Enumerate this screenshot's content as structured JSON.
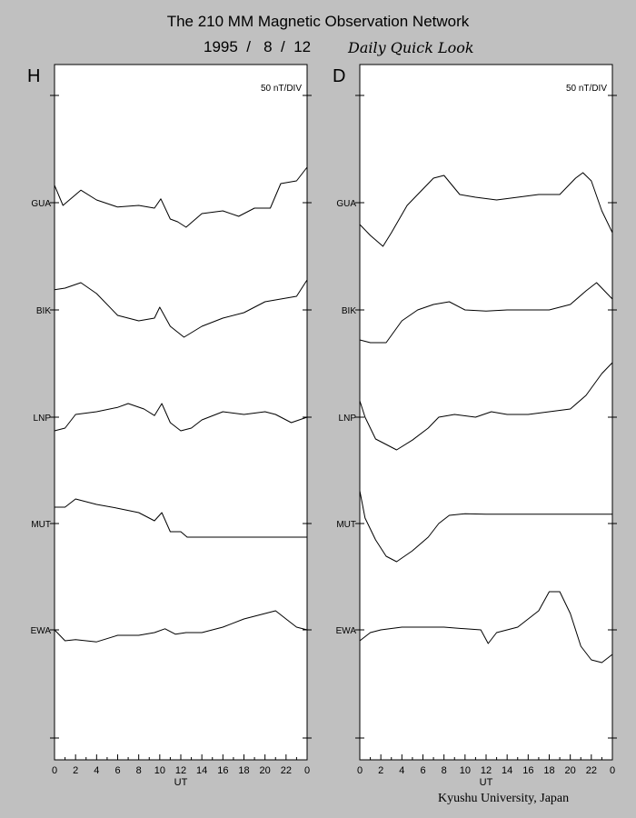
{
  "title": "The 210 MM Magnetic Observation Network",
  "date": "1995  /   8  /  12",
  "subtitle": "Daily Quick Look",
  "footer": "Kyushu University, Japan",
  "chart_data": [
    {
      "type": "line",
      "panel_label": "H",
      "scale_label": "50 nT/DIV",
      "xlabel": "UT",
      "x_ticks": [
        "0",
        "2",
        "4",
        "6",
        "8",
        "10",
        "12",
        "14",
        "16",
        "18",
        "20",
        "22",
        "0"
      ],
      "xlim": [
        0,
        24
      ],
      "station_labels": [
        "GUA",
        "BIK",
        "LNP",
        "MUT",
        "EWA"
      ],
      "series": [
        {
          "name": "GUA",
          "x": [
            0,
            0.8,
            2.5,
            4,
            6,
            8,
            9.5,
            10.1,
            11,
            11.7,
            12.5,
            14,
            16,
            17.5,
            19,
            20.5,
            21.5,
            23,
            24
          ],
          "y": [
            0.32,
            -0.05,
            0.23,
            0.05,
            -0.08,
            -0.05,
            -0.1,
            0.07,
            -0.3,
            -0.35,
            -0.45,
            -0.2,
            -0.15,
            -0.25,
            -0.1,
            -0.1,
            0.35,
            0.4,
            0.65
          ]
        },
        {
          "name": "BIK",
          "x": [
            0,
            1,
            2.5,
            4,
            6,
            8,
            9.5,
            10,
            11,
            12.3,
            14,
            16,
            18,
            20,
            21.5,
            23,
            24
          ],
          "y": [
            0.37,
            0.4,
            0.5,
            0.3,
            -0.1,
            -0.2,
            -0.15,
            0.05,
            -0.3,
            -0.5,
            -0.3,
            -0.15,
            -0.05,
            0.15,
            0.2,
            0.25,
            0.55
          ]
        },
        {
          "name": "LNP",
          "x": [
            0,
            1,
            2,
            4,
            6,
            7,
            8.5,
            9.5,
            10.2,
            11,
            12,
            13,
            14,
            16,
            18,
            20,
            21,
            22.5,
            24
          ],
          "y": [
            -0.25,
            -0.2,
            0.05,
            0.1,
            0.18,
            0.25,
            0.15,
            0.03,
            0.25,
            -0.1,
            -0.25,
            -0.2,
            -0.05,
            0.1,
            0.05,
            0.1,
            0.05,
            -0.1,
            0
          ]
        },
        {
          "name": "MUT",
          "x": [
            0,
            1,
            2,
            4,
            6,
            8,
            9.5,
            10.2,
            11,
            12,
            12.6,
            24
          ],
          "y": [
            0.3,
            0.3,
            0.45,
            0.35,
            0.28,
            0.2,
            0.05,
            0.2,
            -0.15,
            -0.15,
            -0.25,
            -0.25
          ]
        },
        {
          "name": "EWA",
          "x": [
            0,
            1,
            2,
            4,
            6,
            8,
            9.5,
            10.5,
            11.5,
            12.5,
            14,
            16,
            18,
            19,
            20,
            21,
            22,
            23,
            24
          ],
          "y": [
            0,
            -0.2,
            -0.18,
            -0.22,
            -0.1,
            -0.1,
            -0.05,
            0.02,
            -0.08,
            -0.05,
            -0.05,
            0.05,
            0.2,
            0.25,
            0.3,
            0.35,
            0.2,
            0.05,
            0
          ]
        }
      ]
    },
    {
      "type": "line",
      "panel_label": "D",
      "scale_label": "50 nT/DIV",
      "xlabel": "UT",
      "x_ticks": [
        "0",
        "2",
        "4",
        "6",
        "8",
        "10",
        "12",
        "14",
        "16",
        "18",
        "20",
        "22",
        "0"
      ],
      "xlim": [
        0,
        24
      ],
      "station_labels": [
        "GUA",
        "BIK",
        "LNP",
        "MUT",
        "EWA"
      ],
      "series": [
        {
          "name": "GUA",
          "x": [
            0,
            1,
            2.2,
            3,
            4.5,
            6,
            7,
            8,
            9.5,
            11,
            13,
            15,
            17,
            19,
            20.5,
            21.2,
            22,
            23,
            24
          ],
          "y": [
            -0.4,
            -0.6,
            -0.8,
            -0.55,
            -0.05,
            0.25,
            0.45,
            0.5,
            0.15,
            0.1,
            0.05,
            0.1,
            0.15,
            0.15,
            0.45,
            0.55,
            0.4,
            -0.15,
            -0.55
          ]
        },
        {
          "name": "BIK",
          "x": [
            0,
            1,
            2.5,
            4,
            5.5,
            7,
            8.5,
            10,
            12,
            14,
            16,
            18,
            20,
            21.5,
            22.5,
            24
          ],
          "y": [
            -0.55,
            -0.6,
            -0.6,
            -0.2,
            0,
            0.1,
            0.15,
            0,
            -0.02,
            0,
            0,
            0,
            0.1,
            0.35,
            0.5,
            0.2
          ]
        },
        {
          "name": "LNP",
          "x": [
            0,
            0.5,
            1.5,
            2.5,
            3.5,
            5,
            6.5,
            7.5,
            9,
            11,
            12.5,
            14,
            16,
            18,
            20,
            21.5,
            23,
            24
          ],
          "y": [
            0.3,
            0,
            -0.4,
            -0.5,
            -0.6,
            -0.42,
            -0.2,
            0,
            0.05,
            0,
            0.1,
            0.05,
            0.05,
            0.1,
            0.15,
            0.4,
            0.8,
            1.0
          ]
        },
        {
          "name": "MUT",
          "x": [
            0,
            0.5,
            1.5,
            2.5,
            3.5,
            5,
            6.5,
            7.5,
            8.5,
            10,
            12,
            12.6,
            24
          ],
          "y": [
            0.6,
            0.1,
            -0.3,
            -0.6,
            -0.7,
            -0.5,
            -0.25,
            0,
            0.15,
            0.18,
            0.17,
            0.17,
            0.17
          ]
        },
        {
          "name": "EWA",
          "x": [
            0,
            1,
            2,
            4,
            6,
            8,
            10,
            11.5,
            12.2,
            13,
            15,
            17,
            18,
            19,
            20,
            21,
            22,
            23,
            24
          ],
          "y": [
            -0.2,
            -0.05,
            0,
            0.05,
            0.05,
            0.05,
            0.02,
            0,
            -0.25,
            -0.05,
            0.05,
            0.35,
            0.7,
            0.7,
            0.3,
            -0.3,
            -0.55,
            -0.6,
            -0.45
          ]
        }
      ]
    }
  ]
}
